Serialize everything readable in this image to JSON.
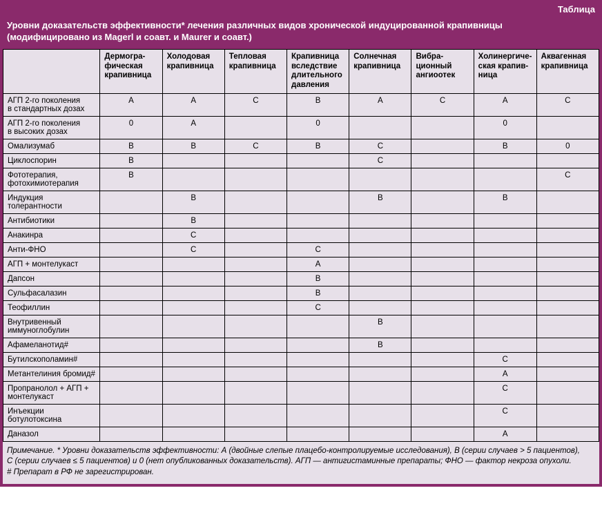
{
  "colors": {
    "frame": "#8a2a6b",
    "panel": "#e7e0e9",
    "border": "#000000",
    "header_text": "#ffffff",
    "body_text": "#000000"
  },
  "typography": {
    "font_family": "Arial, Helvetica, sans-serif",
    "title_size_pt": 10,
    "cell_size_pt": 9,
    "footnote_size_pt": 9
  },
  "table": {
    "top_label": "Таблица",
    "title_line1": "Уровни доказательств эффективности* лечения различных видов хронической индуцированной крапивницы",
    "title_line2": "(модифицировано из Magerl и соавт. и Maurer и соавт.)",
    "columns": [
      "Дермогра-\nфическая\nкрапивница",
      "Холодовая\nкрапивница",
      "Тепловая\nкрапивница",
      "Крапивница\nвследствие\nдлительного\nдавления",
      "Солнечная\nкрапивница",
      "Вибра-\nционный\nангиоотек",
      "Холинергиче-\nская крапив-\nница",
      "Аквагенная\nкрапивница"
    ],
    "rows": [
      {
        "label": "АГП 2‑го поколения\nв стандартных дозах",
        "cells": [
          "A",
          "A",
          "C",
          "B",
          "A",
          "C",
          "A",
          "C"
        ]
      },
      {
        "label": "АГП 2‑го поколения\nв высоких дозах",
        "cells": [
          "0",
          "A",
          "",
          "0",
          "",
          "",
          "0",
          ""
        ]
      },
      {
        "label": "Омализумаб",
        "cells": [
          "B",
          "B",
          "C",
          "B",
          "C",
          "",
          "B",
          "0"
        ]
      },
      {
        "label": "Циклоспорин",
        "cells": [
          "B",
          "",
          "",
          "",
          "C",
          "",
          "",
          ""
        ]
      },
      {
        "label": "Фототерапия,\nфотохимиотерапия",
        "cells": [
          "B",
          "",
          "",
          "",
          "",
          "",
          "",
          "C"
        ]
      },
      {
        "label": "Индукция\nтолерантности",
        "cells": [
          "",
          "B",
          "",
          "",
          "B",
          "",
          "B",
          ""
        ]
      },
      {
        "label": "Антибиотики",
        "cells": [
          "",
          "B",
          "",
          "",
          "",
          "",
          "",
          ""
        ]
      },
      {
        "label": "Анакинра",
        "cells": [
          "",
          "C",
          "",
          "",
          "",
          "",
          "",
          ""
        ]
      },
      {
        "label": "Анти‑ФНО",
        "cells": [
          "",
          "C",
          "",
          "C",
          "",
          "",
          "",
          ""
        ]
      },
      {
        "label": "АГП + монтелукаст",
        "cells": [
          "",
          "",
          "",
          "A",
          "",
          "",
          "",
          ""
        ]
      },
      {
        "label": "Дапсон",
        "cells": [
          "",
          "",
          "",
          "B",
          "",
          "",
          "",
          ""
        ]
      },
      {
        "label": "Сульфасалазин",
        "cells": [
          "",
          "",
          "",
          "B",
          "",
          "",
          "",
          ""
        ]
      },
      {
        "label": "Теофиллин",
        "cells": [
          "",
          "",
          "",
          "C",
          "",
          "",
          "",
          ""
        ]
      },
      {
        "label": "Внутривенный\nиммуноглобулин",
        "cells": [
          "",
          "",
          "",
          "",
          "B",
          "",
          "",
          ""
        ]
      },
      {
        "label": "Афамеланотид#",
        "cells": [
          "",
          "",
          "",
          "",
          "B",
          "",
          "",
          ""
        ]
      },
      {
        "label": "Бутилскополамин#",
        "cells": [
          "",
          "",
          "",
          "",
          "",
          "",
          "C",
          ""
        ]
      },
      {
        "label": "Метантелиния бромид#",
        "cells": [
          "",
          "",
          "",
          "",
          "",
          "",
          "A",
          ""
        ]
      },
      {
        "label": "Пропранолол + АГП +\nмонтелукаст",
        "cells": [
          "",
          "",
          "",
          "",
          "",
          "",
          "C",
          ""
        ]
      },
      {
        "label": "Инъекции\nботулотоксина",
        "cells": [
          "",
          "",
          "",
          "",
          "",
          "",
          "C",
          ""
        ]
      },
      {
        "label": "Даназол",
        "cells": [
          "",
          "",
          "",
          "",
          "",
          "",
          "A",
          ""
        ]
      }
    ],
    "footnote_line1": "Примечание. * Уровни доказательств эффективности: А (двойные слепые плацебо‑контролируемые исследования), В (серии случаев > 5 пациентов),",
    "footnote_line2": "С (серии случаев ≤ 5 пациентов) и 0 (нет опубликованных доказательств). АГП — антигистаминные препараты; ФНО — фактор некроза опухоли.",
    "footnote_line3": "# Препарат в РФ не зарегистрирован."
  }
}
